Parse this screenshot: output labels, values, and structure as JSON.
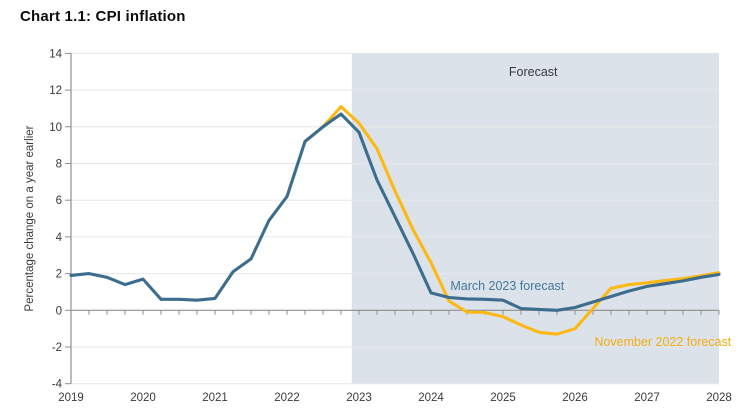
{
  "title": "Chart 1.1: CPI inflation",
  "chart_data": {
    "type": "line",
    "title": "Chart 1.1: CPI inflation",
    "ylabel": "Percentage change on a year earlier",
    "ylim": [
      -4,
      14
    ],
    "yticks": [
      14,
      12,
      10,
      8,
      6,
      4,
      2,
      0,
      -2,
      -4
    ],
    "year_ticks": [
      2019,
      2020,
      2021,
      2022,
      2023,
      2024,
      2025,
      2026,
      2027,
      2028
    ],
    "x_range": [
      2019.0,
      2028.0
    ],
    "quarter_step": 0.25,
    "grid": true,
    "legend_position": "inline-annotations",
    "axis_color": "#8f8f8f",
    "grid_color": "#e7e7e7",
    "tick_label_color": "#3a3a3a",
    "forecast_region": {
      "label": "Forecast",
      "start": 2022.9,
      "end": 2028.0,
      "fill": "#dbe2ea"
    },
    "series": [
      {
        "name": "November 2022 forecast",
        "color": "#fdb813",
        "points": [
          [
            2022.25,
            9.2
          ],
          [
            2022.5,
            10.0
          ],
          [
            2022.75,
            11.1
          ],
          [
            2023.0,
            10.2
          ],
          [
            2023.25,
            8.8
          ],
          [
            2023.5,
            6.5
          ],
          [
            2023.75,
            4.4
          ],
          [
            2024.0,
            2.6
          ],
          [
            2024.25,
            0.5
          ],
          [
            2024.5,
            -0.1
          ],
          [
            2024.75,
            -0.12
          ],
          [
            2025.0,
            -0.35
          ],
          [
            2025.25,
            -0.8
          ],
          [
            2025.5,
            -1.2
          ],
          [
            2025.75,
            -1.3
          ],
          [
            2026.0,
            -1.0
          ],
          [
            2026.25,
            0.1
          ],
          [
            2026.5,
            1.2
          ],
          [
            2026.75,
            1.4
          ],
          [
            2027.0,
            1.5
          ],
          [
            2027.25,
            1.62
          ],
          [
            2027.5,
            1.72
          ],
          [
            2027.75,
            1.88
          ],
          [
            2028.0,
            2.05
          ]
        ]
      },
      {
        "name": "March 2023 forecast",
        "color": "#3d6d8e",
        "points": [
          [
            2019.0,
            1.9
          ],
          [
            2019.25,
            2.0
          ],
          [
            2019.5,
            1.8
          ],
          [
            2019.75,
            1.4
          ],
          [
            2020.0,
            1.7
          ],
          [
            2020.25,
            0.6
          ],
          [
            2020.5,
            0.6
          ],
          [
            2020.75,
            0.55
          ],
          [
            2021.0,
            0.65
          ],
          [
            2021.25,
            2.1
          ],
          [
            2021.5,
            2.8
          ],
          [
            2021.75,
            4.9
          ],
          [
            2022.0,
            6.2
          ],
          [
            2022.25,
            9.2
          ],
          [
            2022.5,
            10.0
          ],
          [
            2022.75,
            10.7
          ],
          [
            2023.0,
            9.7
          ],
          [
            2023.25,
            7.1
          ],
          [
            2023.5,
            5.1
          ],
          [
            2023.75,
            3.1
          ],
          [
            2024.0,
            0.95
          ],
          [
            2024.25,
            0.7
          ],
          [
            2024.5,
            0.62
          ],
          [
            2024.75,
            0.6
          ],
          [
            2025.0,
            0.55
          ],
          [
            2025.25,
            0.1
          ],
          [
            2025.5,
            0.05
          ],
          [
            2025.75,
            0.0
          ],
          [
            2026.0,
            0.15
          ],
          [
            2026.25,
            0.45
          ],
          [
            2026.5,
            0.75
          ],
          [
            2026.75,
            1.05
          ],
          [
            2027.0,
            1.3
          ],
          [
            2027.25,
            1.45
          ],
          [
            2027.5,
            1.6
          ],
          [
            2027.75,
            1.8
          ],
          [
            2028.0,
            1.95
          ]
        ]
      }
    ],
    "annotations": [
      {
        "text": "Forecast",
        "x": 2025.42,
        "y": 12.77,
        "color": "#3a3a3a",
        "size": 12.5
      },
      {
        "text": "March 2023 forecast",
        "x": 2025.06,
        "y": 1.1,
        "color": "#44789c",
        "size": 12.5
      },
      {
        "text": "November 2022 forecast",
        "x": 2027.22,
        "y": -1.95,
        "color": "#f2ae14",
        "size": 12.5
      }
    ]
  }
}
